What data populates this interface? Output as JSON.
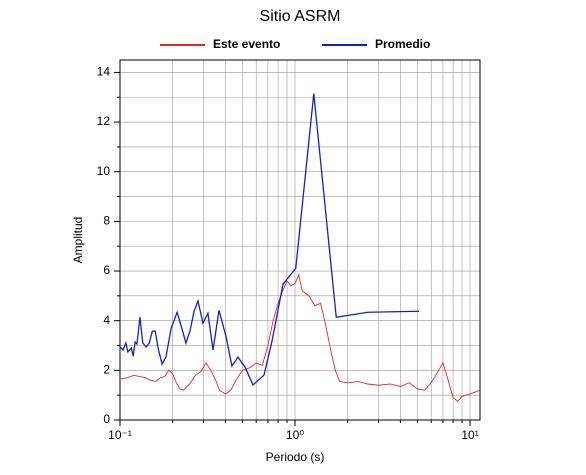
{
  "chart_data": {
    "type": "line",
    "title": "Sitio ASRM",
    "xlabel": "Periodo (s)",
    "ylabel": "Amplitud",
    "xscale": "log",
    "grid": true,
    "legend": "top",
    "xlim": [
      0.1,
      11.4
    ],
    "ylim": [
      0,
      14.5
    ],
    "xticks": [
      {
        "value": 0.1,
        "label": "10⁻¹"
      },
      {
        "value": 1,
        "label": "10⁰"
      },
      {
        "value": 10,
        "label": "10¹"
      }
    ],
    "xminor": [
      0.2,
      0.3,
      0.4,
      0.5,
      0.6,
      0.7,
      0.8,
      0.9,
      2,
      3,
      4,
      5,
      6,
      7,
      8,
      9
    ],
    "yticks": [
      0,
      2,
      4,
      6,
      8,
      10,
      12,
      14
    ],
    "yminor": [
      1,
      3,
      5,
      7,
      9,
      11,
      13
    ],
    "series": [
      {
        "name": "Este evento",
        "color": "#e8262a",
        "x": [
          0.1,
          0.11,
          0.12,
          0.13,
          0.14,
          0.15,
          0.16,
          0.17,
          0.18,
          0.19,
          0.2,
          0.21,
          0.22,
          0.23,
          0.25,
          0.27,
          0.29,
          0.31,
          0.33,
          0.35,
          0.37,
          0.4,
          0.43,
          0.46,
          0.5,
          0.55,
          0.6,
          0.65,
          0.7,
          0.75,
          0.8,
          0.85,
          0.9,
          0.95,
          1.0,
          1.05,
          1.1,
          1.2,
          1.3,
          1.4,
          1.5,
          1.6,
          1.7,
          1.8,
          2.0,
          2.3,
          2.6,
          3.0,
          3.5,
          4.0,
          4.5,
          5,
          5.5,
          6,
          6.5,
          7,
          7.5,
          8,
          8.5,
          9,
          10,
          11.4
        ],
        "values": [
          1.65,
          1.7,
          1.8,
          1.75,
          1.7,
          1.6,
          1.55,
          1.7,
          1.75,
          2.0,
          1.85,
          1.5,
          1.25,
          1.2,
          1.45,
          1.8,
          1.95,
          2.3,
          2.0,
          1.65,
          1.2,
          1.05,
          1.2,
          1.6,
          2.0,
          2.1,
          2.3,
          2.2,
          3.0,
          4.0,
          4.7,
          5.2,
          5.6,
          5.4,
          5.5,
          5.85,
          5.2,
          5.0,
          4.6,
          4.7,
          3.8,
          2.8,
          2.0,
          1.55,
          1.5,
          1.55,
          1.45,
          1.4,
          1.45,
          1.35,
          1.5,
          1.25,
          1.2,
          1.5,
          1.9,
          2.3,
          1.6,
          0.9,
          0.75,
          0.95,
          1.05,
          1.2
        ]
      },
      {
        "name": "Promedio",
        "color": "#1020d0",
        "x": [
          0.1,
          0.104,
          0.108,
          0.111,
          0.116,
          0.119,
          0.122,
          0.125,
          0.13,
          0.135,
          0.141,
          0.147,
          0.153,
          0.159,
          0.165,
          0.174,
          0.183,
          0.196,
          0.212,
          0.223,
          0.238,
          0.251,
          0.265,
          0.279,
          0.298,
          0.318,
          0.34,
          0.368,
          0.404,
          0.436,
          0.472,
          0.518,
          0.575,
          0.665,
          0.739,
          0.854,
          1.01,
          1.28,
          1.72,
          2.61,
          5.11
        ],
        "values": [
          2.94,
          2.82,
          3.1,
          2.74,
          2.9,
          2.57,
          3.14,
          3.06,
          4.14,
          3.1,
          2.94,
          3.1,
          3.58,
          3.58,
          2.9,
          2.25,
          2.53,
          3.7,
          4.34,
          3.82,
          3.1,
          3.58,
          4.38,
          4.79,
          3.9,
          4.3,
          2.82,
          4.42,
          3.34,
          2.17,
          2.53,
          2.13,
          1.41,
          1.81,
          3.18,
          5.47,
          6.11,
          13.15,
          4.14,
          4.34,
          4.38
        ]
      }
    ]
  }
}
